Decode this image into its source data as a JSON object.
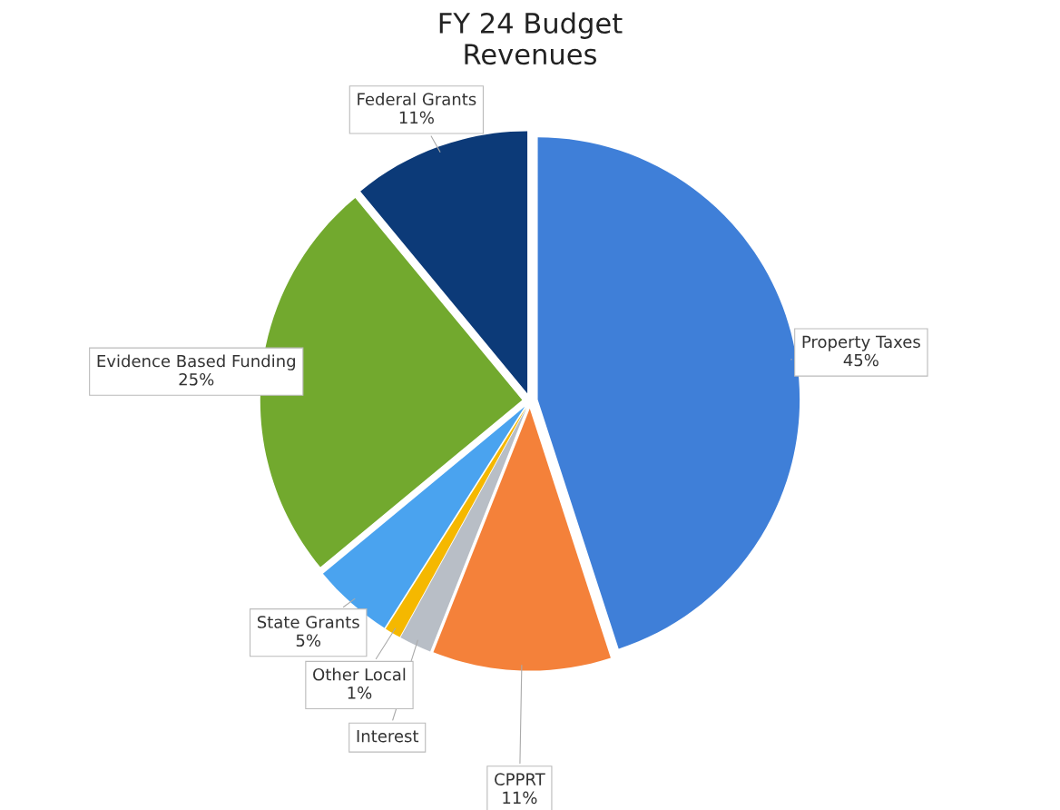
{
  "chart_data": {
    "type": "pie",
    "title": "FY 24 Budget\nRevenues",
    "categories": [
      "Property Taxes",
      "CPPRT",
      "Interest",
      "Other Local",
      "State Grants",
      "Evidence Based Funding",
      "Federal Grants"
    ],
    "values": [
      45,
      11,
      2,
      1,
      5,
      25,
      11
    ],
    "value_labels": [
      "45%",
      "11%",
      null,
      "1%",
      "5%",
      "25%",
      "11%"
    ],
    "colors": [
      "#3f7fd8",
      "#f4813a",
      "#b8bec6",
      "#f5b800",
      "#4aa3ef",
      "#72a92e",
      "#0c3a78"
    ]
  }
}
